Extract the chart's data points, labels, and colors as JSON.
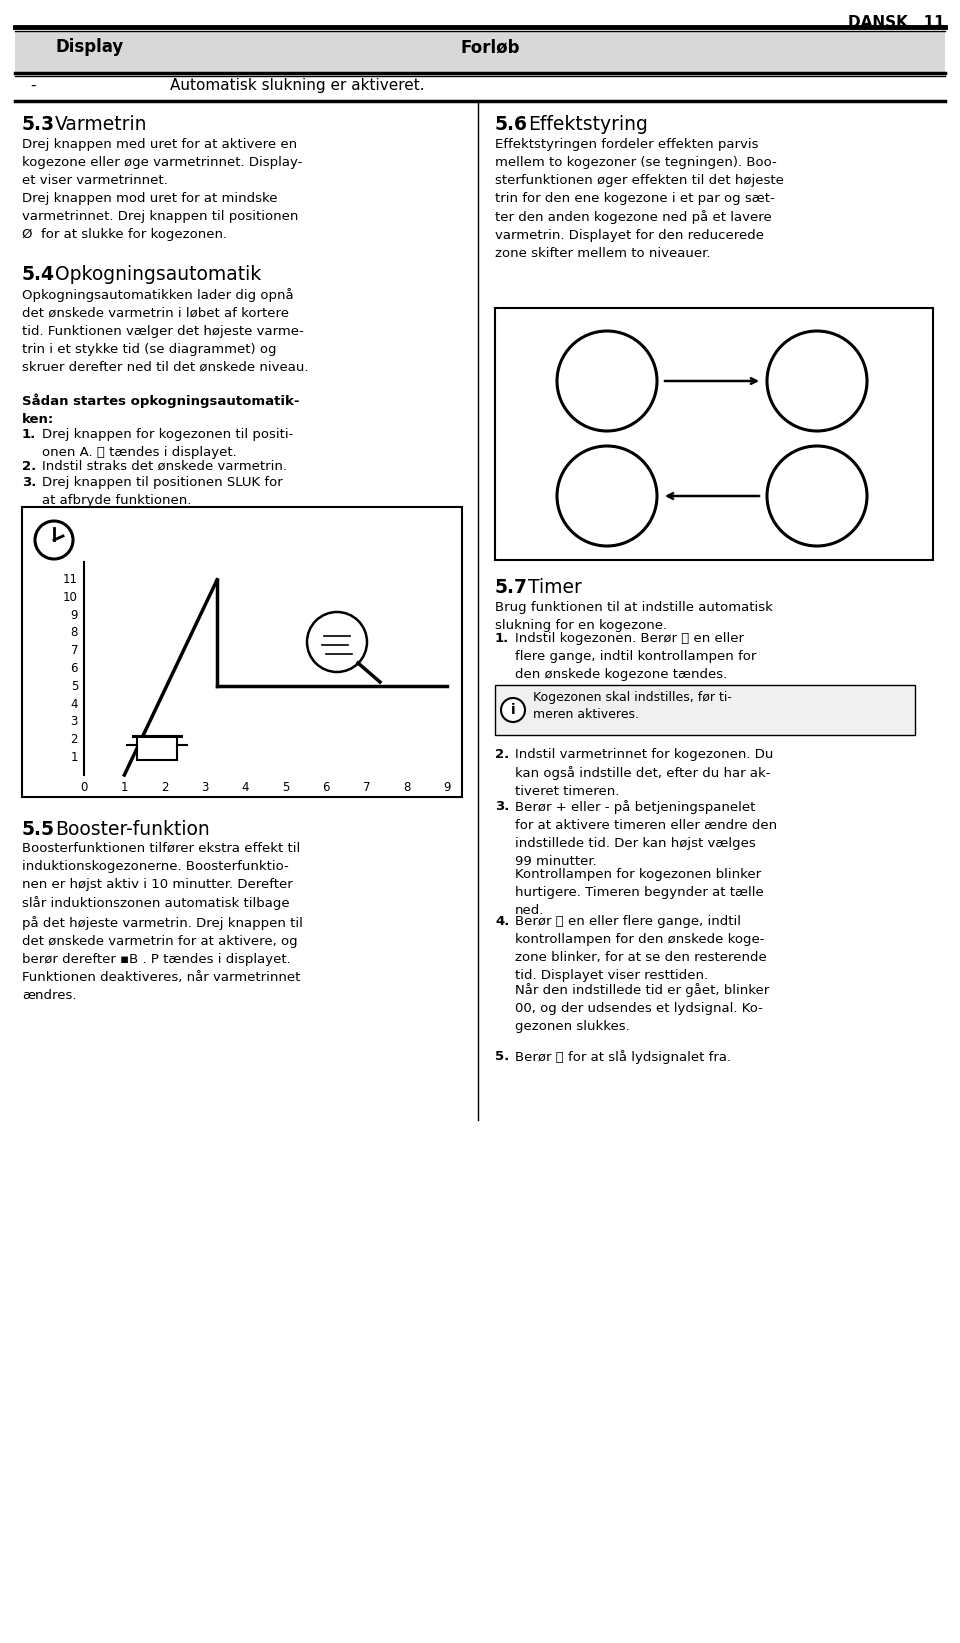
{
  "page_header_right": "DANSK   11",
  "table_col1": "Display",
  "table_col2": "Forløb",
  "table_row1_col1": "-",
  "table_row1_col2": "Automatisk slukning er aktiveret.",
  "section_53_title_num": "5.3",
  "section_53_title_text": "Varmetrin",
  "section_53_body": "Drej knappen med uret for at aktivere en\nkogezone eller øge varmetrinnet. Display-\net viser varmetrinnet.\nDrej knappen mod uret for at mindske\nvarmetrinnet. Drej knappen til positionen\nØ  for at slukke for kogezonen.",
  "section_54_title_num": "5.4",
  "section_54_title_text": "Opkogningsautomatik",
  "section_54_body": "Opkogningsautomatikken lader dig opnå\ndet ønskede varmetrin i løbet af kortere\ntid. Funktionen vælger det højeste varme-\ntrin i et stykke tid (se diagrammet) og\nskruer derefter ned til det ønskede niveau.",
  "section_54_bold": "Sådan startes opkogningsautomatik-\nken:",
  "step1": "Drej knappen for kogezonen til positi-\nonen A. ⓶ tændes i displayet.",
  "step2": "Indstil straks det ønskede varmetrin.",
  "step3": "Drej knappen til positionen SLUK for\nat afbryde funktionen.",
  "section_55_title_num": "5.5",
  "section_55_title_text": "Booster-funktion",
  "section_55_body": "Boosterfunktionen tilfører ekstra effekt til\ninduktionskogezonerne. Boosterfunktio-\nnen er højst aktiv i 10 minutter. Derefter\nslår induktionszonen automatisk tilbage\npå det højeste varmetrin. Drej knappen til\ndet ønskede varmetrin for at aktivere, og\nberør derefter ▪B . P tændes i displayet.\nFunktionen deaktiveres, når varmetrinnet\nændres.",
  "section_56_title_num": "5.6",
  "section_56_title_text": "Effektstyring",
  "section_56_body": "Effektstyringen fordeler effekten parvis\nmellem to kogezoner (se tegningen). Boo-\nsterfunktionen øger effekten til det højeste\ntrin for den ene kogezone i et par og sæt-\nter den anden kogezone ned på et lavere\nvarmetrin. Displayet for den reducerede\nzone skifter mellem to niveauer.",
  "section_57_title_num": "5.7",
  "section_57_title_text": "Timer",
  "section_57_intro": "Brug funktionen til at indstille automatisk\nslukning for en kogezone.",
  "timer_step1": "Indstil kogezonen. Berør ⏱ en eller\nflere gange, indtil kontrollampen for\nden ønskede kogezone tændes.",
  "timer_note": "Kogezonen skal indstilles, før ti-\nmeren aktiveres.",
  "timer_step2": "Indstil varmetrinnet for kogezonen. Du\nkan også indstille det, efter du har ak-\ntiveret timeren.",
  "timer_step3": "Berør + eller - på betjeningspanelet\nfor at aktivere timeren eller ændre den\nindstillede tid. Der kan højst vælges\n99 minutter.",
  "timer_step3b": "Kontrollampen for kogezonen blinker\nhurtigere. Timeren begynder at tælle\nned.",
  "timer_step4": "Berør ⏱ en eller flere gange, indtil\nkontrollampen for den ønskede koge-\nzone blinker, for at se den resterende\ntid. Displayet viser resttiden.",
  "timer_step4b": "Når den indstillede tid er gået, blinker\n00, og der udsendes et lydsignal. Ko-\ngezonen slukkes.",
  "timer_step5": "Berør ⏱ for at slå lydsignalet fra.",
  "bg_color": "#ffffff",
  "header_bg": "#d8d8d8",
  "text_color": "#000000"
}
